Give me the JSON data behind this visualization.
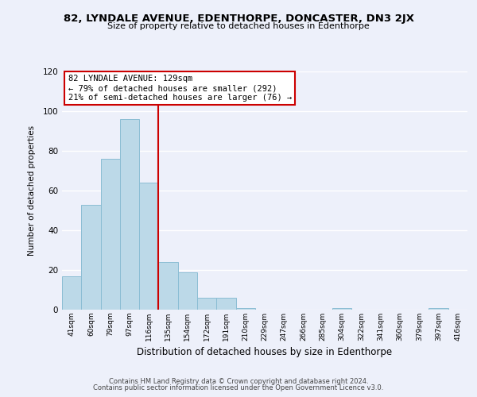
{
  "title": "82, LYNDALE AVENUE, EDENTHORPE, DONCASTER, DN3 2JX",
  "subtitle": "Size of property relative to detached houses in Edenthorpe",
  "xlabel": "Distribution of detached houses by size in Edenthorpe",
  "ylabel": "Number of detached properties",
  "categories": [
    "41sqm",
    "60sqm",
    "79sqm",
    "97sqm",
    "116sqm",
    "135sqm",
    "154sqm",
    "172sqm",
    "191sqm",
    "210sqm",
    "229sqm",
    "247sqm",
    "266sqm",
    "285sqm",
    "304sqm",
    "322sqm",
    "341sqm",
    "360sqm",
    "379sqm",
    "397sqm",
    "416sqm"
  ],
  "values": [
    17,
    53,
    76,
    96,
    64,
    24,
    19,
    6,
    6,
    1,
    0,
    0,
    0,
    0,
    1,
    0,
    0,
    0,
    0,
    1,
    0
  ],
  "bar_color": "#bcd9e8",
  "bar_edge_color": "#8bbdd4",
  "vline_x": 4.5,
  "vline_color": "#cc0000",
  "annotation_title": "82 LYNDALE AVENUE: 129sqm",
  "annotation_line1": "← 79% of detached houses are smaller (292)",
  "annotation_line2": "21% of semi-detached houses are larger (76) →",
  "annotation_box_color": "#ffffff",
  "annotation_box_edge": "#cc0000",
  "ylim": [
    0,
    120
  ],
  "yticks": [
    0,
    20,
    40,
    60,
    80,
    100,
    120
  ],
  "background_color": "#edf0fa",
  "grid_color": "#ffffff",
  "footnote1": "Contains HM Land Registry data © Crown copyright and database right 2024.",
  "footnote2": "Contains public sector information licensed under the Open Government Licence v3.0."
}
